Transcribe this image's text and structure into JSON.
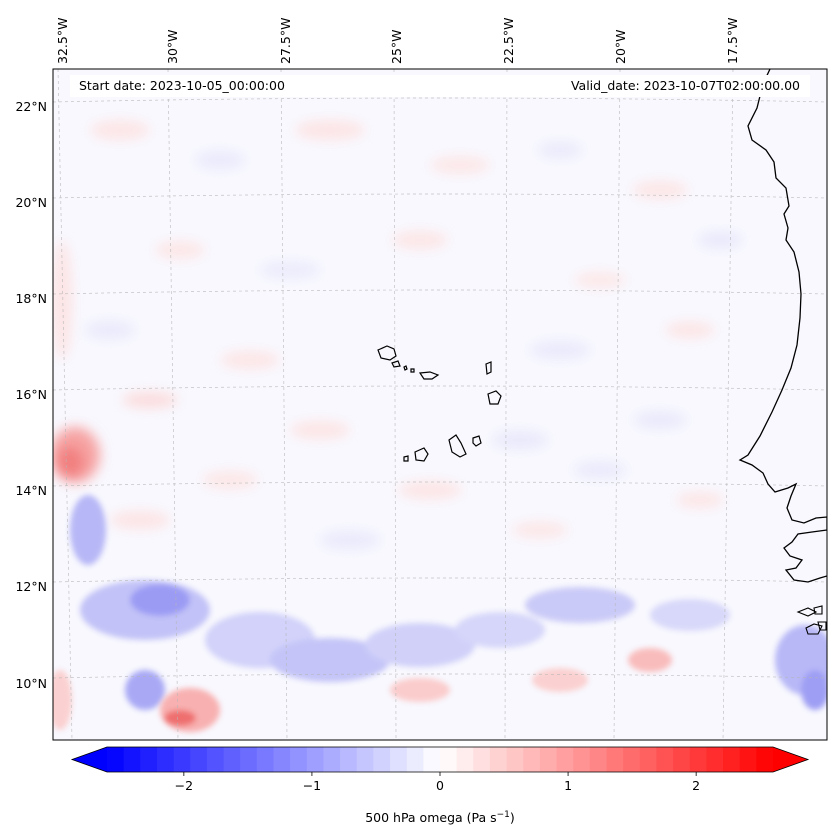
{
  "map": {
    "start_date_text": "Start date: 2023-10-05_00:00:00",
    "valid_date_text": "Valid_date: 2023-10-07T02:00:00.00",
    "lon_labels": [
      "32.5°W",
      "30°W",
      "27.5°W",
      "25°W",
      "22.5°W",
      "20°W",
      "17.5°W"
    ],
    "lat_labels": [
      "22°N",
      "20°N",
      "18°N",
      "16°N",
      "14°N",
      "12°N",
      "10°N"
    ],
    "field": "500 hPa omega",
    "region": "Cape Verde / West African coast",
    "features": [
      "coastline",
      "cape-verde-islands",
      "graticule"
    ]
  },
  "colorbar": {
    "label_text": "500 hPa omega (Pa s",
    "label_sup": "−1",
    "label_close": ")",
    "ticks": [
      "−2",
      "−1",
      "0",
      "1",
      "2"
    ],
    "tick_values": [
      -2,
      -1,
      0,
      1,
      2
    ],
    "vmin": -2.6,
    "vmax": 2.6,
    "colormap": "bwr",
    "extend": "both",
    "colors": {
      "low": "#0000ff",
      "mid": "#ffffff",
      "high": "#ff0000"
    }
  }
}
